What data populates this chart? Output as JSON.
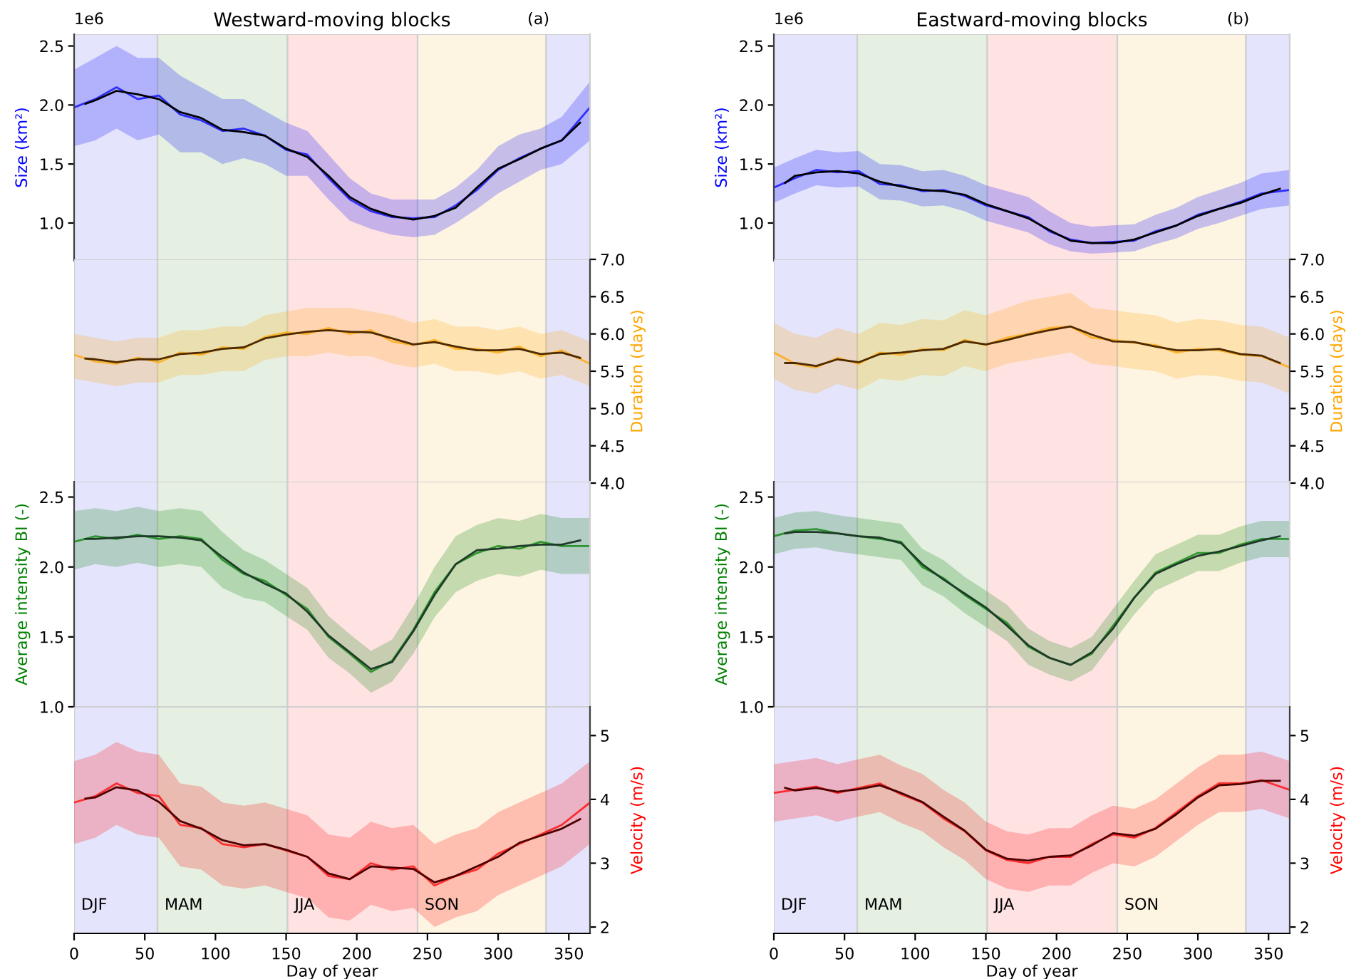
{
  "chart_data": [
    {
      "type": "line",
      "title": "Westward-moving blocks",
      "annotations": [
        "1e6",
        "(a)"
      ],
      "ylabel": "Size (km²)",
      "tick_labels": "y",
      "xlim": [
        0,
        365
      ],
      "xticks": [
        0,
        50,
        100,
        150,
        200,
        250,
        300,
        350
      ],
      "ylim": [
        0.68,
        2.6
      ],
      "yticks": [
        {
          "value": 1.0,
          "label": "1.0"
        },
        1.5,
        {
          "value": 2.0,
          "label": "2.0"
        },
        2.5
      ],
      "bands": [
        {
          "axis": "x",
          "from": 0,
          "to": 59,
          "label": null,
          "color": "#e4e4fc"
        },
        {
          "axis": "x",
          "from": 59,
          "to": 151,
          "label": null,
          "color": "#e5f0e2"
        },
        {
          "axis": "x",
          "from": 151,
          "to": 243,
          "label": null,
          "color": "#ffe3e3"
        },
        {
          "axis": "x",
          "from": 243,
          "to": 334,
          "label": null,
          "color": "#fef4e2"
        },
        {
          "axis": "x",
          "from": 334,
          "to": 365,
          "label": null,
          "color": "#e4e4fc"
        }
      ],
      "series": [
        {
          "color": "#0000ff",
          "x": [
            0,
            15,
            30,
            45,
            60,
            75,
            90,
            105,
            120,
            135,
            150,
            165,
            180,
            195,
            210,
            225,
            240,
            255,
            270,
            285,
            300,
            315,
            330,
            345,
            365
          ],
          "values": [
            1.98,
            2.05,
            2.15,
            2.05,
            2.08,
            1.92,
            1.87,
            1.78,
            1.8,
            1.74,
            1.62,
            1.58,
            1.38,
            1.2,
            1.1,
            1.05,
            1.04,
            1.05,
            1.15,
            1.28,
            1.45,
            1.55,
            1.63,
            1.7,
            1.98
          ],
          "upper": [
            2.3,
            2.4,
            2.5,
            2.4,
            2.4,
            2.25,
            2.15,
            2.05,
            2.05,
            1.95,
            1.85,
            1.78,
            1.58,
            1.38,
            1.25,
            1.2,
            1.2,
            1.2,
            1.3,
            1.45,
            1.65,
            1.75,
            1.8,
            1.9,
            2.2
          ],
          "lower": [
            1.65,
            1.7,
            1.8,
            1.7,
            1.75,
            1.6,
            1.6,
            1.5,
            1.55,
            1.5,
            1.4,
            1.4,
            1.2,
            1.02,
            0.95,
            0.9,
            0.88,
            0.9,
            1.0,
            1.12,
            1.25,
            1.35,
            1.45,
            1.5,
            1.7
          ]
        },
        {
          "color": "#000000",
          "x": [
            8,
            15,
            30,
            45,
            60,
            75,
            90,
            105,
            120,
            135,
            150,
            165,
            180,
            195,
            210,
            225,
            240,
            255,
            270,
            285,
            300,
            315,
            330,
            345,
            358
          ],
          "values": [
            2.01,
            2.04,
            2.12,
            2.09,
            2.05,
            1.94,
            1.89,
            1.79,
            1.77,
            1.74,
            1.63,
            1.56,
            1.4,
            1.22,
            1.12,
            1.06,
            1.03,
            1.06,
            1.13,
            1.3,
            1.46,
            1.54,
            1.63,
            1.7,
            1.85
          ]
        }
      ]
    },
    {
      "type": "line",
      "ylabel": "Duration (days)",
      "tick_labels": "y",
      "xlim": [
        0,
        365
      ],
      "xticks": [
        0,
        50,
        100,
        150,
        200,
        250,
        300,
        350
      ],
      "ylim": [
        4.0,
        7.0
      ],
      "yticks": [
        {
          "value": 4.0,
          "label": "4.0"
        },
        4.5,
        {
          "value": 5.0,
          "label": "5.0"
        },
        5.5,
        {
          "value": 6.0,
          "label": "6.0"
        },
        6.5,
        {
          "value": 7.0,
          "label": "7.0"
        }
      ],
      "bands": [
        {
          "axis": "x",
          "from": 0,
          "to": 59,
          "label": null,
          "color": "#e4e4fc"
        },
        {
          "axis": "x",
          "from": 59,
          "to": 151,
          "label": null,
          "color": "#e5f0e2"
        },
        {
          "axis": "x",
          "from": 151,
          "to": 243,
          "label": null,
          "color": "#ffe3e3"
        },
        {
          "axis": "x",
          "from": 243,
          "to": 334,
          "label": null,
          "color": "#fef4e2"
        },
        {
          "axis": "x",
          "from": 334,
          "to": 365,
          "label": null,
          "color": "#e4e4fc"
        }
      ],
      "series": [
        {
          "color": "#ffa500",
          "x": [
            0,
            15,
            30,
            45,
            60,
            75,
            90,
            105,
            120,
            135,
            150,
            165,
            180,
            195,
            210,
            225,
            240,
            255,
            270,
            285,
            300,
            315,
            330,
            345,
            365
          ],
          "values": [
            5.72,
            5.63,
            5.6,
            5.68,
            5.62,
            5.75,
            5.72,
            5.82,
            5.8,
            5.96,
            6.02,
            6.0,
            6.08,
            6.0,
            6.05,
            5.9,
            5.85,
            5.92,
            5.8,
            5.8,
            5.75,
            5.83,
            5.7,
            5.78,
            5.6
          ],
          "upper": [
            6.0,
            5.95,
            5.9,
            5.95,
            5.95,
            6.05,
            6.05,
            6.1,
            6.1,
            6.25,
            6.3,
            6.35,
            6.35,
            6.35,
            6.3,
            6.25,
            6.15,
            6.2,
            6.1,
            6.1,
            6.05,
            6.1,
            6.0,
            6.05,
            5.9
          ],
          "lower": [
            5.4,
            5.35,
            5.3,
            5.35,
            5.35,
            5.45,
            5.45,
            5.5,
            5.5,
            5.65,
            5.7,
            5.7,
            5.75,
            5.7,
            5.7,
            5.6,
            5.55,
            5.6,
            5.5,
            5.5,
            5.45,
            5.5,
            5.4,
            5.45,
            5.3
          ]
        },
        {
          "color": "#4d2a00",
          "x": [
            8,
            15,
            30,
            45,
            60,
            75,
            90,
            105,
            120,
            135,
            150,
            165,
            180,
            195,
            210,
            225,
            240,
            255,
            270,
            285,
            300,
            315,
            330,
            345,
            358
          ],
          "values": [
            5.67,
            5.66,
            5.62,
            5.66,
            5.66,
            5.73,
            5.75,
            5.8,
            5.82,
            5.94,
            5.99,
            6.03,
            6.05,
            6.03,
            6.02,
            5.94,
            5.86,
            5.89,
            5.83,
            5.78,
            5.78,
            5.8,
            5.73,
            5.75,
            5.68
          ]
        }
      ]
    },
    {
      "type": "line",
      "ylabel": "Average intensity BI (-)",
      "tick_labels": "y",
      "xlim": [
        0,
        365
      ],
      "xticks": [
        0,
        50,
        100,
        150,
        200,
        250,
        300,
        350
      ],
      "ylim": [
        1.0,
        2.61
      ],
      "yticks": [
        {
          "value": 1.0,
          "label": "1.0"
        },
        1.5,
        {
          "value": 2.0,
          "label": "2.0"
        },
        2.5
      ],
      "bands": [
        {
          "axis": "x",
          "from": 0,
          "to": 59,
          "label": null,
          "color": "#e4e4fc"
        },
        {
          "axis": "x",
          "from": 59,
          "to": 151,
          "label": null,
          "color": "#e5f0e2"
        },
        {
          "axis": "x",
          "from": 151,
          "to": 243,
          "label": null,
          "color": "#ffe3e3"
        },
        {
          "axis": "x",
          "from": 243,
          "to": 334,
          "label": null,
          "color": "#fef4e2"
        },
        {
          "axis": "x",
          "from": 334,
          "to": 365,
          "label": null,
          "color": "#e4e4fc"
        }
      ],
      "series": [
        {
          "color": "#008000",
          "x": [
            0,
            15,
            30,
            45,
            60,
            75,
            90,
            105,
            120,
            135,
            150,
            165,
            180,
            195,
            210,
            225,
            240,
            255,
            270,
            285,
            300,
            315,
            330,
            345,
            365
          ],
          "values": [
            2.18,
            2.22,
            2.2,
            2.23,
            2.2,
            2.22,
            2.2,
            2.05,
            1.95,
            1.9,
            1.8,
            1.7,
            1.5,
            1.38,
            1.25,
            1.33,
            1.55,
            1.82,
            2.02,
            2.1,
            2.15,
            2.13,
            2.18,
            2.15,
            2.15
          ],
          "upper": [
            2.4,
            2.42,
            2.4,
            2.43,
            2.4,
            2.42,
            2.4,
            2.25,
            2.12,
            2.05,
            1.95,
            1.85,
            1.65,
            1.52,
            1.4,
            1.48,
            1.72,
            2.0,
            2.22,
            2.3,
            2.35,
            2.33,
            2.38,
            2.35,
            2.35
          ],
          "lower": [
            1.98,
            2.02,
            2.0,
            2.03,
            2.0,
            2.02,
            2.0,
            1.85,
            1.78,
            1.75,
            1.65,
            1.55,
            1.35,
            1.24,
            1.1,
            1.18,
            1.38,
            1.64,
            1.82,
            1.9,
            1.95,
            1.93,
            1.98,
            1.95,
            1.95
          ]
        },
        {
          "color": "#1f3a2a",
          "x": [
            8,
            15,
            30,
            45,
            60,
            75,
            90,
            105,
            120,
            135,
            150,
            165,
            180,
            195,
            210,
            225,
            240,
            255,
            270,
            285,
            300,
            315,
            330,
            345,
            358
          ],
          "values": [
            2.2,
            2.2,
            2.21,
            2.22,
            2.22,
            2.21,
            2.19,
            2.07,
            1.96,
            1.88,
            1.81,
            1.68,
            1.51,
            1.39,
            1.27,
            1.32,
            1.54,
            1.8,
            2.02,
            2.12,
            2.13,
            2.15,
            2.16,
            2.16,
            2.19
          ]
        }
      ]
    },
    {
      "type": "line",
      "xlabel": "Day of year",
      "ylabel": "Velocity (m/s)",
      "xlim": [
        0,
        365
      ],
      "xticks": [
        0,
        50,
        100,
        150,
        200,
        250,
        300,
        350
      ],
      "ylim": [
        1.9,
        5.45
      ],
      "yticks": [
        2,
        3,
        4,
        5
      ],
      "bands": [
        {
          "axis": "x",
          "from": 0,
          "to": 59,
          "label": "DJF",
          "color": "#e4e4fc"
        },
        {
          "axis": "x",
          "from": 59,
          "to": 151,
          "label": "MAM",
          "color": "#e5f0e2"
        },
        {
          "axis": "x",
          "from": 151,
          "to": 243,
          "label": "JJA",
          "color": "#ffe3e3"
        },
        {
          "axis": "x",
          "from": 243,
          "to": 334,
          "label": "SON",
          "color": "#fef4e2"
        },
        {
          "axis": "x",
          "from": 334,
          "to": 365,
          "label": null,
          "color": "#e4e4fc"
        }
      ],
      "series": [
        {
          "color": "#ff0000",
          "x": [
            0,
            15,
            30,
            45,
            60,
            75,
            90,
            105,
            120,
            135,
            150,
            165,
            180,
            195,
            210,
            225,
            240,
            255,
            270,
            285,
            300,
            315,
            330,
            345,
            365
          ],
          "values": [
            3.95,
            4.05,
            4.25,
            4.1,
            4.05,
            3.6,
            3.55,
            3.3,
            3.25,
            3.3,
            3.2,
            3.1,
            2.8,
            2.75,
            3.0,
            2.9,
            2.95,
            2.65,
            2.8,
            2.9,
            3.15,
            3.3,
            3.45,
            3.6,
            3.95
          ],
          "upper": [
            4.6,
            4.7,
            4.9,
            4.75,
            4.7,
            4.25,
            4.2,
            3.95,
            3.9,
            3.95,
            3.85,
            3.75,
            3.45,
            3.4,
            3.65,
            3.55,
            3.6,
            3.3,
            3.45,
            3.55,
            3.8,
            3.95,
            4.1,
            4.25,
            4.6
          ],
          "lower": [
            3.3,
            3.4,
            3.6,
            3.45,
            3.4,
            2.95,
            2.9,
            2.65,
            2.6,
            2.65,
            2.55,
            2.45,
            2.15,
            2.1,
            2.35,
            2.25,
            2.3,
            2.0,
            2.15,
            2.25,
            2.5,
            2.65,
            2.8,
            2.95,
            3.3
          ]
        },
        {
          "color": "#4d0000",
          "x": [
            8,
            15,
            30,
            45,
            60,
            75,
            90,
            105,
            120,
            135,
            150,
            165,
            180,
            195,
            210,
            225,
            240,
            255,
            270,
            285,
            300,
            315,
            330,
            345,
            358
          ],
          "values": [
            4.01,
            4.03,
            4.19,
            4.14,
            3.96,
            3.66,
            3.54,
            3.36,
            3.28,
            3.3,
            3.21,
            3.1,
            2.84,
            2.75,
            2.95,
            2.93,
            2.91,
            2.7,
            2.8,
            2.95,
            3.1,
            3.32,
            3.43,
            3.54,
            3.69
          ]
        }
      ]
    },
    {
      "type": "line",
      "title": "Eastward-moving blocks",
      "annotations": [
        "1e6",
        "(b)"
      ],
      "ylabel": "Size (km²)",
      "tick_labels": "y",
      "xlim": [
        0,
        365
      ],
      "xticks": [
        0,
        50,
        100,
        150,
        200,
        250,
        300,
        350
      ],
      "ylim": [
        0.68,
        2.6
      ],
      "yticks": [
        {
          "value": 1.0,
          "label": "1.0"
        },
        1.5,
        {
          "value": 2.0,
          "label": "2.0"
        },
        2.5
      ],
      "bands": [
        {
          "axis": "x",
          "from": 0,
          "to": 59,
          "label": null,
          "color": "#e4e4fc"
        },
        {
          "axis": "x",
          "from": 59,
          "to": 151,
          "label": null,
          "color": "#e5f0e2"
        },
        {
          "axis": "x",
          "from": 151,
          "to": 243,
          "label": null,
          "color": "#ffe3e3"
        },
        {
          "axis": "x",
          "from": 243,
          "to": 334,
          "label": null,
          "color": "#fef4e2"
        },
        {
          "axis": "x",
          "from": 334,
          "to": 365,
          "label": null,
          "color": "#e4e4fc"
        }
      ],
      "series": [
        {
          "color": "#0000ff",
          "x": [
            0,
            15,
            30,
            45,
            60,
            75,
            90,
            105,
            120,
            135,
            150,
            165,
            180,
            195,
            210,
            225,
            240,
            255,
            270,
            285,
            300,
            315,
            330,
            345,
            365
          ],
          "values": [
            1.3,
            1.38,
            1.45,
            1.43,
            1.44,
            1.33,
            1.32,
            1.27,
            1.28,
            1.23,
            1.15,
            1.1,
            1.05,
            0.93,
            0.86,
            0.83,
            0.84,
            0.85,
            0.93,
            0.98,
            1.07,
            1.12,
            1.18,
            1.25,
            1.28
          ],
          "upper": [
            1.47,
            1.55,
            1.62,
            1.6,
            1.61,
            1.5,
            1.49,
            1.44,
            1.45,
            1.4,
            1.32,
            1.27,
            1.22,
            1.1,
            1.0,
            0.97,
            0.98,
            0.99,
            1.07,
            1.13,
            1.22,
            1.28,
            1.34,
            1.42,
            1.45
          ],
          "lower": [
            1.17,
            1.25,
            1.32,
            1.3,
            1.31,
            1.2,
            1.19,
            1.14,
            1.15,
            1.1,
            1.02,
            0.97,
            0.92,
            0.82,
            0.76,
            0.74,
            0.75,
            0.76,
            0.82,
            0.87,
            0.95,
            1.0,
            1.06,
            1.12,
            1.15
          ]
        },
        {
          "color": "#000000",
          "x": [
            8,
            15,
            30,
            45,
            60,
            75,
            90,
            105,
            120,
            135,
            150,
            165,
            180,
            195,
            210,
            225,
            240,
            255,
            270,
            285,
            300,
            315,
            330,
            345,
            358
          ],
          "values": [
            1.34,
            1.4,
            1.43,
            1.44,
            1.42,
            1.35,
            1.31,
            1.28,
            1.27,
            1.24,
            1.16,
            1.1,
            1.04,
            0.94,
            0.85,
            0.83,
            0.83,
            0.86,
            0.92,
            0.98,
            1.06,
            1.12,
            1.17,
            1.24,
            1.29
          ]
        }
      ]
    },
    {
      "type": "line",
      "ylabel": "Duration (days)",
      "tick_labels": "y",
      "xlim": [
        0,
        365
      ],
      "xticks": [
        0,
        50,
        100,
        150,
        200,
        250,
        300,
        350
      ],
      "ylim": [
        4.0,
        7.0
      ],
      "yticks": [
        {
          "value": 4.0,
          "label": "4.0"
        },
        4.5,
        {
          "value": 5.0,
          "label": "5.0"
        },
        5.5,
        {
          "value": 6.0,
          "label": "6.0"
        },
        6.5,
        {
          "value": 7.0,
          "label": "7.0"
        }
      ],
      "bands": [
        {
          "axis": "x",
          "from": 0,
          "to": 59,
          "label": null,
          "color": "#e4e4fc"
        },
        {
          "axis": "x",
          "from": 59,
          "to": 151,
          "label": null,
          "color": "#e5f0e2"
        },
        {
          "axis": "x",
          "from": 151,
          "to": 243,
          "label": null,
          "color": "#ffe3e3"
        },
        {
          "axis": "x",
          "from": 243,
          "to": 334,
          "label": null,
          "color": "#fef4e2"
        },
        {
          "axis": "x",
          "from": 334,
          "to": 365,
          "label": null,
          "color": "#e4e4fc"
        }
      ],
      "series": [
        {
          "color": "#ffa500",
          "x": [
            0,
            15,
            30,
            45,
            60,
            75,
            90,
            105,
            120,
            135,
            150,
            165,
            180,
            195,
            210,
            225,
            240,
            255,
            270,
            285,
            300,
            315,
            330,
            345,
            365
          ],
          "values": [
            5.75,
            5.6,
            5.55,
            5.68,
            5.6,
            5.75,
            5.72,
            5.8,
            5.78,
            5.92,
            5.85,
            5.95,
            6.0,
            6.08,
            6.1,
            5.95,
            5.92,
            5.88,
            5.85,
            5.75,
            5.8,
            5.78,
            5.72,
            5.7,
            5.55
          ],
          "upper": [
            6.15,
            6.0,
            5.95,
            6.08,
            6.0,
            6.15,
            6.12,
            6.2,
            6.18,
            6.32,
            6.25,
            6.35,
            6.45,
            6.5,
            6.55,
            6.35,
            6.32,
            6.28,
            6.25,
            6.15,
            6.2,
            6.18,
            6.12,
            6.1,
            5.95
          ],
          "lower": [
            5.4,
            5.25,
            5.2,
            5.33,
            5.25,
            5.4,
            5.37,
            5.45,
            5.43,
            5.57,
            5.5,
            5.6,
            5.65,
            5.7,
            5.75,
            5.6,
            5.57,
            5.53,
            5.5,
            5.4,
            5.45,
            5.43,
            5.37,
            5.35,
            5.2
          ]
        },
        {
          "color": "#4d2a00",
          "x": [
            8,
            15,
            30,
            45,
            60,
            75,
            90,
            105,
            120,
            135,
            150,
            165,
            180,
            195,
            210,
            225,
            240,
            255,
            270,
            285,
            300,
            315,
            330,
            345,
            358
          ],
          "values": [
            5.61,
            5.61,
            5.57,
            5.66,
            5.62,
            5.73,
            5.75,
            5.78,
            5.8,
            5.9,
            5.86,
            5.92,
            5.99,
            6.05,
            6.1,
            5.99,
            5.9,
            5.89,
            5.83,
            5.78,
            5.78,
            5.8,
            5.73,
            5.71,
            5.61
          ]
        }
      ]
    },
    {
      "type": "line",
      "ylabel": "Average intensity BI (-)",
      "tick_labels": "y",
      "xlim": [
        0,
        365
      ],
      "xticks": [
        0,
        50,
        100,
        150,
        200,
        250,
        300,
        350
      ],
      "ylim": [
        1.0,
        2.61
      ],
      "yticks": [
        {
          "value": 1.0,
          "label": "1.0"
        },
        1.5,
        {
          "value": 2.0,
          "label": "2.0"
        },
        2.5
      ],
      "bands": [
        {
          "axis": "x",
          "from": 0,
          "to": 59,
          "label": null,
          "color": "#e4e4fc"
        },
        {
          "axis": "x",
          "from": 59,
          "to": 151,
          "label": null,
          "color": "#e5f0e2"
        },
        {
          "axis": "x",
          "from": 151,
          "to": 243,
          "label": null,
          "color": "#ffe3e3"
        },
        {
          "axis": "x",
          "from": 243,
          "to": 334,
          "label": null,
          "color": "#fef4e2"
        },
        {
          "axis": "x",
          "from": 334,
          "to": 365,
          "label": null,
          "color": "#e4e4fc"
        }
      ],
      "series": [
        {
          "color": "#008000",
          "x": [
            0,
            15,
            30,
            45,
            60,
            75,
            90,
            105,
            120,
            135,
            150,
            165,
            180,
            195,
            210,
            225,
            240,
            255,
            270,
            285,
            300,
            315,
            330,
            345,
            365
          ],
          "values": [
            2.22,
            2.26,
            2.27,
            2.24,
            2.22,
            2.2,
            2.18,
            2.0,
            1.92,
            1.8,
            1.7,
            1.6,
            1.43,
            1.35,
            1.3,
            1.38,
            1.58,
            1.78,
            1.96,
            2.03,
            2.1,
            2.1,
            2.16,
            2.2,
            2.2
          ],
          "upper": [
            2.35,
            2.39,
            2.4,
            2.37,
            2.35,
            2.33,
            2.31,
            2.13,
            2.05,
            1.93,
            1.83,
            1.73,
            1.56,
            1.47,
            1.42,
            1.5,
            1.7,
            1.9,
            2.09,
            2.16,
            2.23,
            2.23,
            2.29,
            2.33,
            2.33
          ],
          "lower": [
            2.09,
            2.13,
            2.14,
            2.11,
            2.09,
            2.07,
            2.05,
            1.87,
            1.79,
            1.67,
            1.57,
            1.47,
            1.3,
            1.23,
            1.18,
            1.26,
            1.46,
            1.66,
            1.83,
            1.9,
            1.97,
            1.97,
            2.03,
            2.07,
            2.07
          ]
        },
        {
          "color": "#1f3a2a",
          "x": [
            8,
            15,
            30,
            45,
            60,
            75,
            90,
            105,
            120,
            135,
            150,
            165,
            180,
            195,
            210,
            225,
            240,
            255,
            270,
            285,
            300,
            315,
            330,
            345,
            358
          ],
          "values": [
            2.24,
            2.25,
            2.25,
            2.24,
            2.22,
            2.21,
            2.17,
            2.02,
            1.91,
            1.81,
            1.71,
            1.58,
            1.44,
            1.35,
            1.3,
            1.39,
            1.56,
            1.78,
            1.95,
            2.02,
            2.08,
            2.11,
            2.15,
            2.19,
            2.22
          ]
        }
      ]
    },
    {
      "type": "line",
      "xlabel": "Day of year",
      "ylabel": "Velocity (m/s)",
      "xlim": [
        0,
        365
      ],
      "xticks": [
        0,
        50,
        100,
        150,
        200,
        250,
        300,
        350
      ],
      "ylim": [
        1.9,
        5.45
      ],
      "yticks": [
        2,
        3,
        4,
        5
      ],
      "bands": [
        {
          "axis": "x",
          "from": 0,
          "to": 59,
          "label": "DJF",
          "color": "#e4e4fc"
        },
        {
          "axis": "x",
          "from": 59,
          "to": 151,
          "label": "MAM",
          "color": "#e5f0e2"
        },
        {
          "axis": "x",
          "from": 151,
          "to": 243,
          "label": "JJA",
          "color": "#ffe3e3"
        },
        {
          "axis": "x",
          "from": 243,
          "to": 334,
          "label": "SON",
          "color": "#fef4e2"
        },
        {
          "axis": "x",
          "from": 334,
          "to": 365,
          "label": null,
          "color": "#e4e4fc"
        }
      ],
      "series": [
        {
          "color": "#ff0000",
          "x": [
            0,
            15,
            30,
            45,
            60,
            75,
            90,
            105,
            120,
            135,
            150,
            165,
            180,
            195,
            210,
            225,
            240,
            255,
            270,
            285,
            300,
            315,
            330,
            345,
            365
          ],
          "values": [
            4.1,
            4.15,
            4.2,
            4.1,
            4.18,
            4.25,
            4.08,
            3.95,
            3.7,
            3.5,
            3.2,
            3.05,
            3.0,
            3.1,
            3.1,
            3.3,
            3.45,
            3.4,
            3.55,
            3.8,
            4.05,
            4.25,
            4.25,
            4.3,
            4.15
          ],
          "upper": [
            4.55,
            4.6,
            4.65,
            4.55,
            4.63,
            4.7,
            4.53,
            4.4,
            4.15,
            3.95,
            3.65,
            3.5,
            3.45,
            3.55,
            3.55,
            3.75,
            3.9,
            3.85,
            4.0,
            4.25,
            4.5,
            4.7,
            4.7,
            4.75,
            4.6
          ],
          "lower": [
            3.65,
            3.7,
            3.75,
            3.65,
            3.73,
            3.8,
            3.63,
            3.5,
            3.25,
            3.05,
            2.75,
            2.6,
            2.55,
            2.65,
            2.65,
            2.85,
            3.0,
            2.95,
            3.1,
            3.35,
            3.6,
            3.8,
            3.8,
            3.85,
            3.7
          ]
        },
        {
          "color": "#4d0000",
          "x": [
            8,
            15,
            30,
            45,
            60,
            75,
            90,
            105,
            120,
            135,
            150,
            165,
            180,
            195,
            210,
            225,
            240,
            255,
            270,
            285,
            300,
            315,
            330,
            345,
            358
          ],
          "values": [
            4.18,
            4.14,
            4.18,
            4.12,
            4.16,
            4.22,
            4.1,
            3.96,
            3.73,
            3.51,
            3.21,
            3.07,
            3.04,
            3.1,
            3.12,
            3.28,
            3.47,
            3.43,
            3.54,
            3.77,
            4.03,
            4.22,
            4.24,
            4.29,
            4.29
          ]
        }
      ]
    }
  ]
}
